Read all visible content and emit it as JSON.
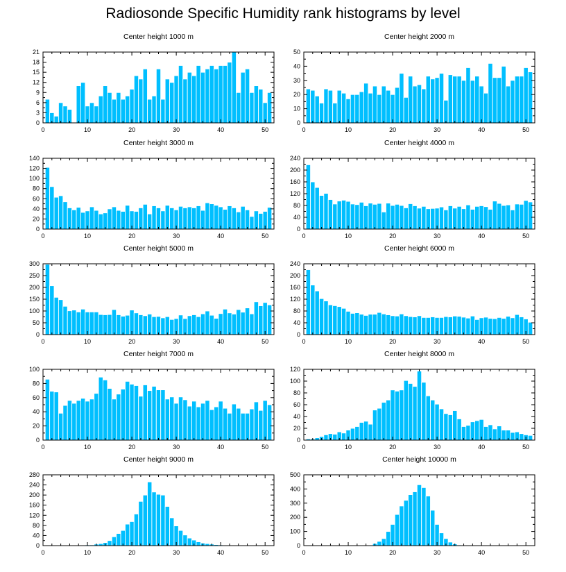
{
  "title": "Radiosonde Specific Humidity rank histograms by level",
  "colors": {
    "bar": "#00bfff",
    "bar_edge": "#ffffff",
    "axis": "#000000"
  },
  "chart_data": [
    {
      "type": "bar",
      "title": "Center height 1000 m",
      "xlabel": "",
      "ylabel": "",
      "xlim": [
        0,
        52
      ],
      "xticks": [
        0,
        10,
        20,
        30,
        40,
        50
      ],
      "ylim": [
        0,
        21
      ],
      "yticks": [
        0,
        3,
        6,
        9,
        12,
        15,
        18,
        21
      ],
      "categories": [
        1,
        2,
        3,
        4,
        5,
        6,
        7,
        8,
        9,
        10,
        11,
        12,
        13,
        14,
        15,
        16,
        17,
        18,
        19,
        20,
        21,
        22,
        23,
        24,
        25,
        26,
        27,
        28,
        29,
        30,
        31,
        32,
        33,
        34,
        35,
        36,
        37,
        38,
        39,
        40,
        41,
        42,
        43,
        44,
        45,
        46,
        47,
        48,
        49,
        50,
        51
      ],
      "values": [
        7,
        3,
        2,
        6,
        5,
        4,
        0,
        11,
        12,
        5,
        6,
        5,
        8,
        11,
        9,
        7,
        9,
        7,
        8,
        10,
        14,
        13,
        16,
        7,
        8,
        16,
        7,
        13,
        12,
        14,
        17,
        13,
        15,
        14,
        17,
        15,
        16,
        17,
        16,
        17,
        17,
        18,
        21,
        9,
        15,
        16,
        9,
        11,
        10,
        6,
        9
      ]
    },
    {
      "type": "bar",
      "title": "Center height 2000 m",
      "xlabel": "",
      "ylabel": "",
      "xlim": [
        0,
        52
      ],
      "xticks": [
        0,
        10,
        20,
        30,
        40,
        50
      ],
      "ylim": [
        0,
        50
      ],
      "yticks": [
        0,
        10,
        20,
        30,
        40,
        50
      ],
      "categories": [
        1,
        2,
        3,
        4,
        5,
        6,
        7,
        8,
        9,
        10,
        11,
        12,
        13,
        14,
        15,
        16,
        17,
        18,
        19,
        20,
        21,
        22,
        23,
        24,
        25,
        26,
        27,
        28,
        29,
        30,
        31,
        32,
        33,
        34,
        35,
        36,
        37,
        38,
        39,
        40,
        41,
        42,
        43,
        44,
        45,
        46,
        47,
        48,
        49,
        50,
        51
      ],
      "values": [
        24,
        23,
        19,
        14,
        24,
        23,
        14,
        23,
        21,
        17,
        20,
        20,
        22,
        28,
        21,
        26,
        20,
        26,
        23,
        20,
        25,
        35,
        18,
        33,
        26,
        27,
        24,
        33,
        31,
        32,
        35,
        16,
        34,
        33,
        33,
        30,
        39,
        30,
        33,
        26,
        21,
        42,
        32,
        32,
        40,
        26,
        30,
        33,
        33,
        39,
        36
      ]
    },
    {
      "type": "bar",
      "title": "Center height 3000 m",
      "xlabel": "",
      "ylabel": "",
      "xlim": [
        0,
        52
      ],
      "xticks": [
        0,
        10,
        20,
        30,
        40,
        50
      ],
      "ylim": [
        0,
        140
      ],
      "yticks": [
        0,
        20,
        40,
        60,
        80,
        100,
        120,
        140
      ],
      "categories": [
        1,
        2,
        3,
        4,
        5,
        6,
        7,
        8,
        9,
        10,
        11,
        12,
        13,
        14,
        15,
        16,
        17,
        18,
        19,
        20,
        21,
        22,
        23,
        24,
        25,
        26,
        27,
        28,
        29,
        30,
        31,
        32,
        33,
        34,
        35,
        36,
        37,
        38,
        39,
        40,
        41,
        42,
        43,
        44,
        45,
        46,
        47,
        48,
        49,
        50,
        51
      ],
      "values": [
        122,
        84,
        63,
        66,
        54,
        42,
        38,
        43,
        33,
        36,
        44,
        37,
        30,
        32,
        40,
        44,
        37,
        35,
        47,
        36,
        35,
        42,
        49,
        30,
        46,
        42,
        36,
        47,
        42,
        38,
        45,
        42,
        44,
        42,
        46,
        37,
        52,
        50,
        47,
        44,
        39,
        46,
        42,
        34,
        45,
        38,
        25,
        36,
        31,
        35,
        43
      ]
    },
    {
      "type": "bar",
      "title": "Center height 4000 m",
      "xlabel": "",
      "ylabel": "",
      "xlim": [
        0,
        52
      ],
      "xticks": [
        0,
        10,
        20,
        30,
        40,
        50
      ],
      "ylim": [
        0,
        240
      ],
      "yticks": [
        0,
        40,
        80,
        120,
        160,
        200,
        240
      ],
      "categories": [
        1,
        2,
        3,
        4,
        5,
        6,
        7,
        8,
        9,
        10,
        11,
        12,
        13,
        14,
        15,
        16,
        17,
        18,
        19,
        20,
        21,
        22,
        23,
        24,
        25,
        26,
        27,
        28,
        29,
        30,
        31,
        32,
        33,
        34,
        35,
        36,
        37,
        38,
        39,
        40,
        41,
        42,
        43,
        44,
        45,
        46,
        47,
        48,
        49,
        50,
        51
      ],
      "values": [
        218,
        160,
        141,
        114,
        121,
        100,
        85,
        95,
        98,
        94,
        85,
        83,
        91,
        79,
        88,
        84,
        87,
        58,
        88,
        80,
        84,
        80,
        72,
        86,
        79,
        71,
        77,
        69,
        70,
        71,
        75,
        65,
        79,
        71,
        77,
        69,
        82,
        67,
        77,
        79,
        76,
        67,
        95,
        87,
        80,
        82,
        65,
        85,
        84,
        97,
        92
      ]
    },
    {
      "type": "bar",
      "title": "Center height 5000 m",
      "xlabel": "",
      "ylabel": "",
      "xlim": [
        0,
        52
      ],
      "xticks": [
        0,
        10,
        20,
        30,
        40,
        50
      ],
      "ylim": [
        0,
        300
      ],
      "yticks": [
        0,
        50,
        100,
        150,
        200,
        250,
        300
      ],
      "categories": [
        1,
        2,
        3,
        4,
        5,
        6,
        7,
        8,
        9,
        10,
        11,
        12,
        13,
        14,
        15,
        16,
        17,
        18,
        19,
        20,
        21,
        22,
        23,
        24,
        25,
        26,
        27,
        28,
        29,
        30,
        31,
        32,
        33,
        34,
        35,
        36,
        37,
        38,
        39,
        40,
        41,
        42,
        43,
        44,
        45,
        46,
        47,
        48,
        49,
        50,
        51
      ],
      "values": [
        298,
        207,
        158,
        148,
        120,
        101,
        104,
        96,
        108,
        96,
        96,
        96,
        85,
        84,
        85,
        106,
        84,
        78,
        82,
        104,
        92,
        84,
        80,
        87,
        76,
        77,
        71,
        76,
        64,
        68,
        83,
        68,
        80,
        84,
        76,
        88,
        100,
        82,
        69,
        89,
        108,
        92,
        87,
        106,
        95,
        113,
        88,
        139,
        122,
        136,
        126
      ]
    },
    {
      "type": "bar",
      "title": "Center height 6000 m",
      "xlabel": "",
      "ylabel": "",
      "xlim": [
        0,
        52
      ],
      "xticks": [
        0,
        10,
        20,
        30,
        40,
        50
      ],
      "ylim": [
        0,
        240
      ],
      "yticks": [
        0,
        40,
        80,
        120,
        160,
        200,
        240
      ],
      "categories": [
        1,
        2,
        3,
        4,
        5,
        6,
        7,
        8,
        9,
        10,
        11,
        12,
        13,
        14,
        15,
        16,
        17,
        18,
        19,
        20,
        21,
        22,
        23,
        24,
        25,
        26,
        27,
        28,
        29,
        30,
        31,
        32,
        33,
        34,
        35,
        36,
        37,
        38,
        39,
        40,
        41,
        42,
        43,
        44,
        45,
        46,
        47,
        48,
        49,
        50,
        51
      ],
      "values": [
        220,
        168,
        148,
        122,
        114,
        101,
        98,
        95,
        89,
        79,
        72,
        74,
        69,
        65,
        69,
        69,
        75,
        70,
        67,
        64,
        63,
        70,
        64,
        61,
        60,
        64,
        58,
        58,
        60,
        58,
        58,
        61,
        60,
        63,
        62,
        59,
        56,
        63,
        51,
        57,
        59,
        55,
        54,
        58,
        55,
        62,
        57,
        68,
        60,
        53,
        42
      ]
    },
    {
      "type": "bar",
      "title": "Center height 7000 m",
      "xlabel": "",
      "ylabel": "",
      "xlim": [
        0,
        52
      ],
      "xticks": [
        0,
        10,
        20,
        30,
        40,
        50
      ],
      "ylim": [
        0,
        100
      ],
      "yticks": [
        0,
        20,
        40,
        60,
        80,
        100
      ],
      "categories": [
        1,
        2,
        3,
        4,
        5,
        6,
        7,
        8,
        9,
        10,
        11,
        12,
        13,
        14,
        15,
        16,
        17,
        18,
        19,
        20,
        21,
        22,
        23,
        24,
        25,
        26,
        27,
        28,
        29,
        30,
        31,
        32,
        33,
        34,
        35,
        36,
        37,
        38,
        39,
        40,
        41,
        42,
        43,
        44,
        45,
        46,
        47,
        48,
        49,
        50,
        51
      ],
      "values": [
        86,
        69,
        68,
        38,
        49,
        56,
        52,
        56,
        59,
        55,
        58,
        66,
        89,
        85,
        73,
        58,
        65,
        72,
        83,
        79,
        77,
        62,
        78,
        70,
        76,
        71,
        71,
        58,
        61,
        52,
        61,
        57,
        48,
        55,
        47,
        52,
        56,
        43,
        47,
        55,
        45,
        38,
        51,
        45,
        38,
        38,
        44,
        54,
        42,
        56,
        50
      ]
    },
    {
      "type": "bar",
      "title": "Center height 8000 m",
      "xlabel": "",
      "ylabel": "",
      "xlim": [
        0,
        52
      ],
      "xticks": [
        0,
        10,
        20,
        30,
        40,
        50
      ],
      "ylim": [
        0,
        120
      ],
      "yticks": [
        0,
        20,
        40,
        60,
        80,
        100,
        120
      ],
      "categories": [
        1,
        2,
        3,
        4,
        5,
        6,
        7,
        8,
        9,
        10,
        11,
        12,
        13,
        14,
        15,
        16,
        17,
        18,
        19,
        20,
        21,
        22,
        23,
        24,
        25,
        26,
        27,
        28,
        29,
        30,
        31,
        32,
        33,
        34,
        35,
        36,
        37,
        38,
        39,
        40,
        41,
        42,
        43,
        44,
        45,
        46,
        47,
        48,
        49,
        50,
        51
      ],
      "values": [
        2,
        2,
        4,
        6,
        9,
        11,
        10,
        14,
        12,
        17,
        20,
        23,
        30,
        32,
        27,
        51,
        54,
        64,
        68,
        85,
        83,
        85,
        101,
        96,
        91,
        117,
        98,
        75,
        68,
        61,
        53,
        45,
        43,
        50,
        36,
        23,
        25,
        31,
        33,
        35,
        23,
        26,
        19,
        24,
        17,
        17,
        13,
        14,
        11,
        9,
        8
      ]
    },
    {
      "type": "bar",
      "title": "Center height 9000 m",
      "xlabel": "",
      "ylabel": "",
      "xlim": [
        0,
        52
      ],
      "xticks": [
        0,
        10,
        20,
        30,
        40,
        50
      ],
      "ylim": [
        0,
        280
      ],
      "yticks": [
        0,
        40,
        80,
        120,
        160,
        200,
        240,
        280
      ],
      "categories": [
        1,
        2,
        3,
        4,
        5,
        6,
        7,
        8,
        9,
        10,
        11,
        12,
        13,
        14,
        15,
        16,
        17,
        18,
        19,
        20,
        21,
        22,
        23,
        24,
        25,
        26,
        27,
        28,
        29,
        30,
        31,
        32,
        33,
        34,
        35,
        36,
        37,
        38,
        39,
        40,
        41,
        42,
        43,
        44,
        45,
        46,
        47,
        48,
        49,
        50,
        51
      ],
      "values": [
        0,
        0,
        0,
        0,
        0,
        0,
        1,
        1,
        2,
        3,
        3,
        6,
        8,
        12,
        20,
        35,
        48,
        60,
        85,
        95,
        125,
        175,
        200,
        252,
        212,
        203,
        200,
        155,
        110,
        78,
        60,
        42,
        30,
        22,
        15,
        10,
        8,
        6,
        4,
        3,
        2,
        2,
        1,
        1,
        1,
        1,
        0,
        0,
        0,
        0,
        0
      ]
    },
    {
      "type": "bar",
      "title": "Center height 10000 m",
      "xlabel": "",
      "ylabel": "",
      "xlim": [
        0,
        52
      ],
      "xticks": [
        0,
        10,
        20,
        30,
        40,
        50
      ],
      "ylim": [
        0,
        500
      ],
      "yticks": [
        0,
        100,
        200,
        300,
        400,
        500
      ],
      "categories": [
        1,
        2,
        3,
        4,
        5,
        6,
        7,
        8,
        9,
        10,
        11,
        12,
        13,
        14,
        15,
        16,
        17,
        18,
        19,
        20,
        21,
        22,
        23,
        24,
        25,
        26,
        27,
        28,
        29,
        30,
        31,
        32,
        33,
        34,
        35,
        36,
        37,
        38,
        39,
        40,
        41,
        42,
        43,
        44,
        45,
        46,
        47,
        48,
        49,
        50,
        51
      ],
      "values": [
        0,
        0,
        0,
        0,
        0,
        0,
        0,
        0,
        0,
        0,
        0,
        0,
        0,
        1,
        3,
        15,
        30,
        50,
        100,
        150,
        220,
        280,
        320,
        360,
        380,
        430,
        410,
        350,
        250,
        150,
        90,
        50,
        25,
        12,
        5,
        2,
        1,
        0,
        0,
        0,
        0,
        0,
        0,
        0,
        0,
        0,
        0,
        0,
        0,
        0,
        0
      ]
    }
  ]
}
